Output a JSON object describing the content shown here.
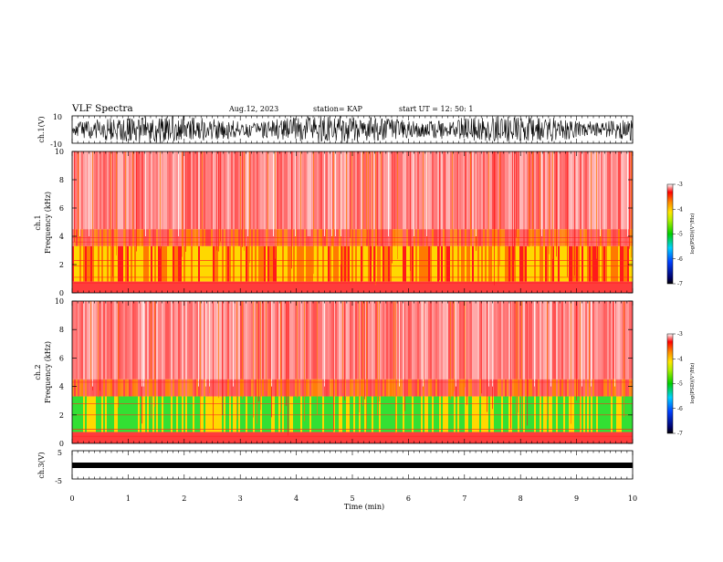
{
  "header": {
    "title": "VLF Spectra",
    "date": "Aug.12, 2023",
    "station": "station= KAP",
    "start_ut": "start  UT  =   12: 50: 1"
  },
  "chart_data": [
    {
      "type": "line",
      "panel": "ch1-waveform",
      "ylabel": "ch.1(V)",
      "ylim": [
        -10,
        10
      ],
      "y_ticks": [
        "10",
        "-10"
      ],
      "xlim": [
        0,
        10
      ]
    },
    {
      "type": "heatmap",
      "panel": "ch1-spectrogram",
      "ylabel": "ch.1\nFrequency  (kHz)",
      "ylim": [
        0,
        10
      ],
      "y_ticks": [
        "10",
        "8",
        "6",
        "4",
        "2",
        "0"
      ],
      "xlim": [
        0,
        10
      ],
      "colorbar": {
        "label": "log(PSD)(V²/Hz)",
        "range": [
          -7,
          -3
        ],
        "ticks": [
          "-3",
          "-4",
          "-5",
          "-6",
          "-7"
        ]
      }
    },
    {
      "type": "heatmap",
      "panel": "ch2-spectrogram",
      "ylabel": "ch.2\nFrequency  (kHz)",
      "ylim": [
        0,
        10
      ],
      "y_ticks": [
        "10",
        "8",
        "6",
        "4",
        "2",
        "0"
      ],
      "xlim": [
        0,
        10
      ],
      "colorbar": {
        "label": "log(PSD)(V²/Hz)",
        "range": [
          -7,
          -3
        ],
        "ticks": [
          "-3",
          "-4",
          "-5",
          "-6",
          "-7"
        ]
      }
    },
    {
      "type": "line",
      "panel": "ch3-waveform",
      "ylabel": "ch.3(V)",
      "ylim": [
        -5,
        5
      ],
      "y_ticks": [
        "5",
        "-5"
      ],
      "xlim": [
        0,
        10
      ]
    }
  ],
  "x_axis": {
    "label": "Time  (min)",
    "ticks": [
      "0",
      "1",
      "2",
      "3",
      "4",
      "5",
      "6",
      "7",
      "8",
      "9",
      "10"
    ],
    "range": [
      0,
      10
    ]
  },
  "colors": {
    "spec_bg": "#ffffff",
    "spec_red": "#ff1a1a",
    "spec_orange": "#ff7a00",
    "spec_yellow": "#ffd800",
    "spec_green": "#33e033",
    "trace": "#000000"
  }
}
